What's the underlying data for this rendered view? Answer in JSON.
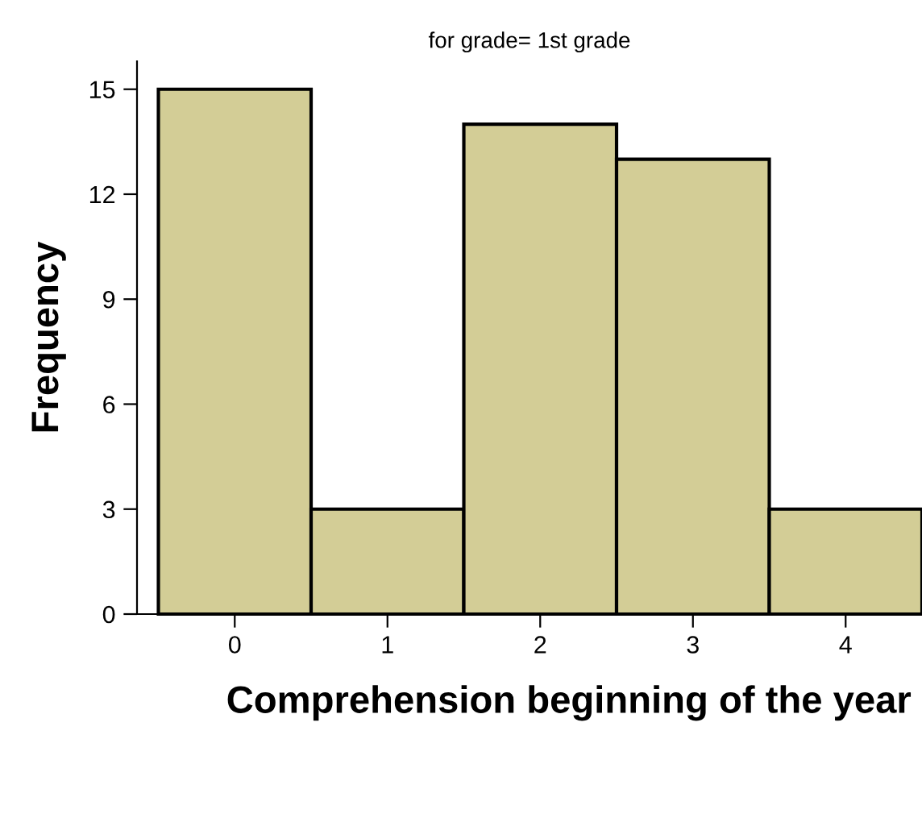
{
  "chart_data": {
    "type": "histogram",
    "title": "for grade= 1st grade",
    "xlabel": "Comprehension beginning of the year",
    "ylabel": "Frequency",
    "bins": [
      -0.5,
      0.5,
      1.5,
      2.5,
      3.5,
      4.5
    ],
    "values": [
      15,
      3,
      14,
      13,
      3
    ],
    "color": "#d3cd96",
    "xlim": [
      -0.64,
      4.5
    ],
    "xticks": [
      0,
      1,
      2,
      3,
      4
    ],
    "ylim": [
      0,
      15.8
    ],
    "yticks": [
      0,
      3,
      6,
      9,
      12,
      15
    ],
    "grid": false
  }
}
